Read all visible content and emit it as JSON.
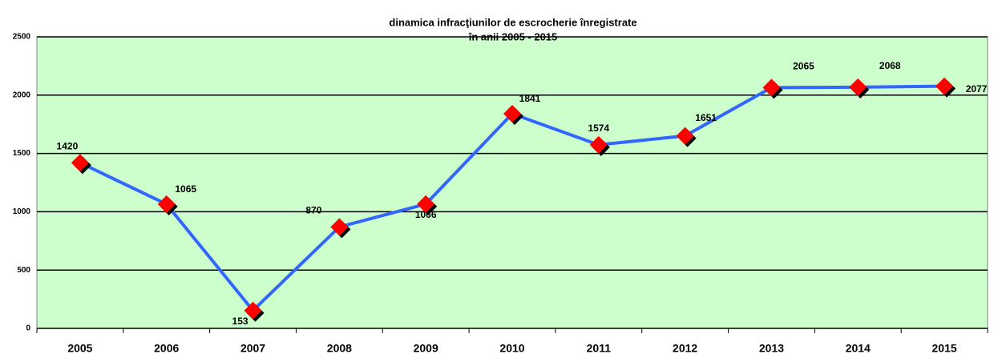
{
  "chart_data": {
    "type": "line",
    "title": [
      "dinamica infracţiunilor de escrocherie înregistrate",
      "în anii 2005 - 2015"
    ],
    "categories": [
      "2005",
      "2006",
      "2007",
      "2008",
      "2009",
      "2010",
      "2011",
      "2012",
      "2013",
      "2014",
      "2015"
    ],
    "values": [
      1420,
      1065,
      153,
      870,
      1066,
      1841,
      1574,
      1651,
      2065,
      2068,
      2077
    ],
    "color": "#3366ff",
    "marker_color": "#ff0000",
    "plot_background": "#ccffcc",
    "ylim": [
      0,
      2500
    ],
    "yticks": [
      0,
      500,
      1000,
      1500,
      2000,
      2500
    ],
    "grid": true
  }
}
